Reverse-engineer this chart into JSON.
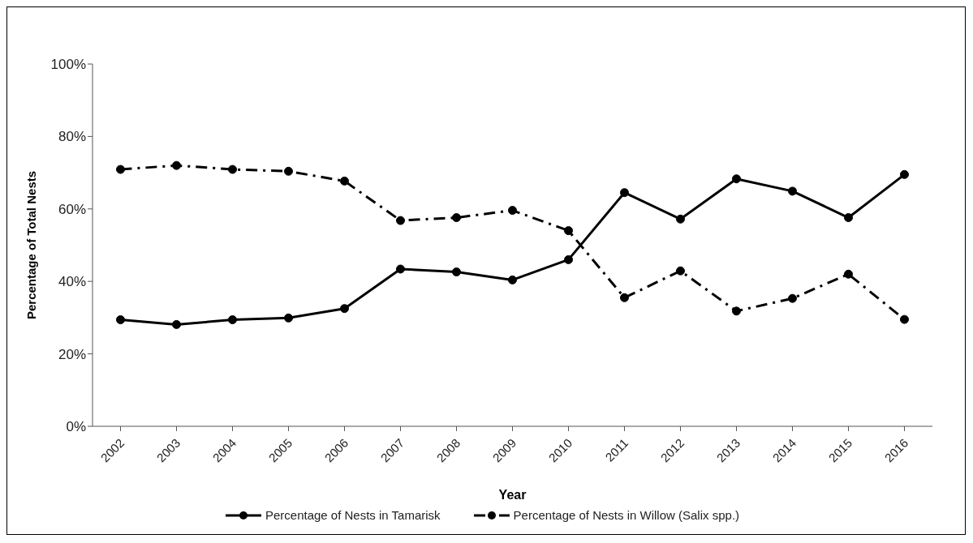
{
  "chart_data": {
    "type": "line",
    "xlabel": "Year",
    "ylabel": "Percentage of Total Nests",
    "categories": [
      "2002",
      "2003",
      "2004",
      "2005",
      "2006",
      "2007",
      "2008",
      "2009",
      "2010",
      "2011",
      "2012",
      "2013",
      "2014",
      "2015",
      "2016"
    ],
    "series": [
      {
        "name": "Percentage of Nests in Tamarisk",
        "color": "#000000",
        "line_style": "solid",
        "values": [
          29.4,
          28.1,
          29.4,
          29.9,
          32.5,
          43.4,
          42.6,
          40.4,
          46.0,
          64.5,
          57.2,
          68.3,
          64.9,
          57.6,
          69.5
        ]
      },
      {
        "name": "Percentage of Nests in Willow (Salix spp.)",
        "color": "#000000",
        "line_style": "dashed",
        "values": [
          70.9,
          72.0,
          70.9,
          70.4,
          67.7,
          56.8,
          57.6,
          59.6,
          54.0,
          35.5,
          42.9,
          31.8,
          35.3,
          42.0,
          29.5
        ]
      }
    ],
    "ylim": [
      0,
      100
    ],
    "yticks": [
      {
        "value": 0,
        "label": "0%"
      },
      {
        "value": 20,
        "label": "20%"
      },
      {
        "value": 40,
        "label": "40%"
      },
      {
        "value": 60,
        "label": "60%"
      },
      {
        "value": 80,
        "label": "80%"
      },
      {
        "value": 100,
        "label": "100%"
      }
    ],
    "grid": false,
    "legend": "bottom",
    "marker": "circle"
  }
}
